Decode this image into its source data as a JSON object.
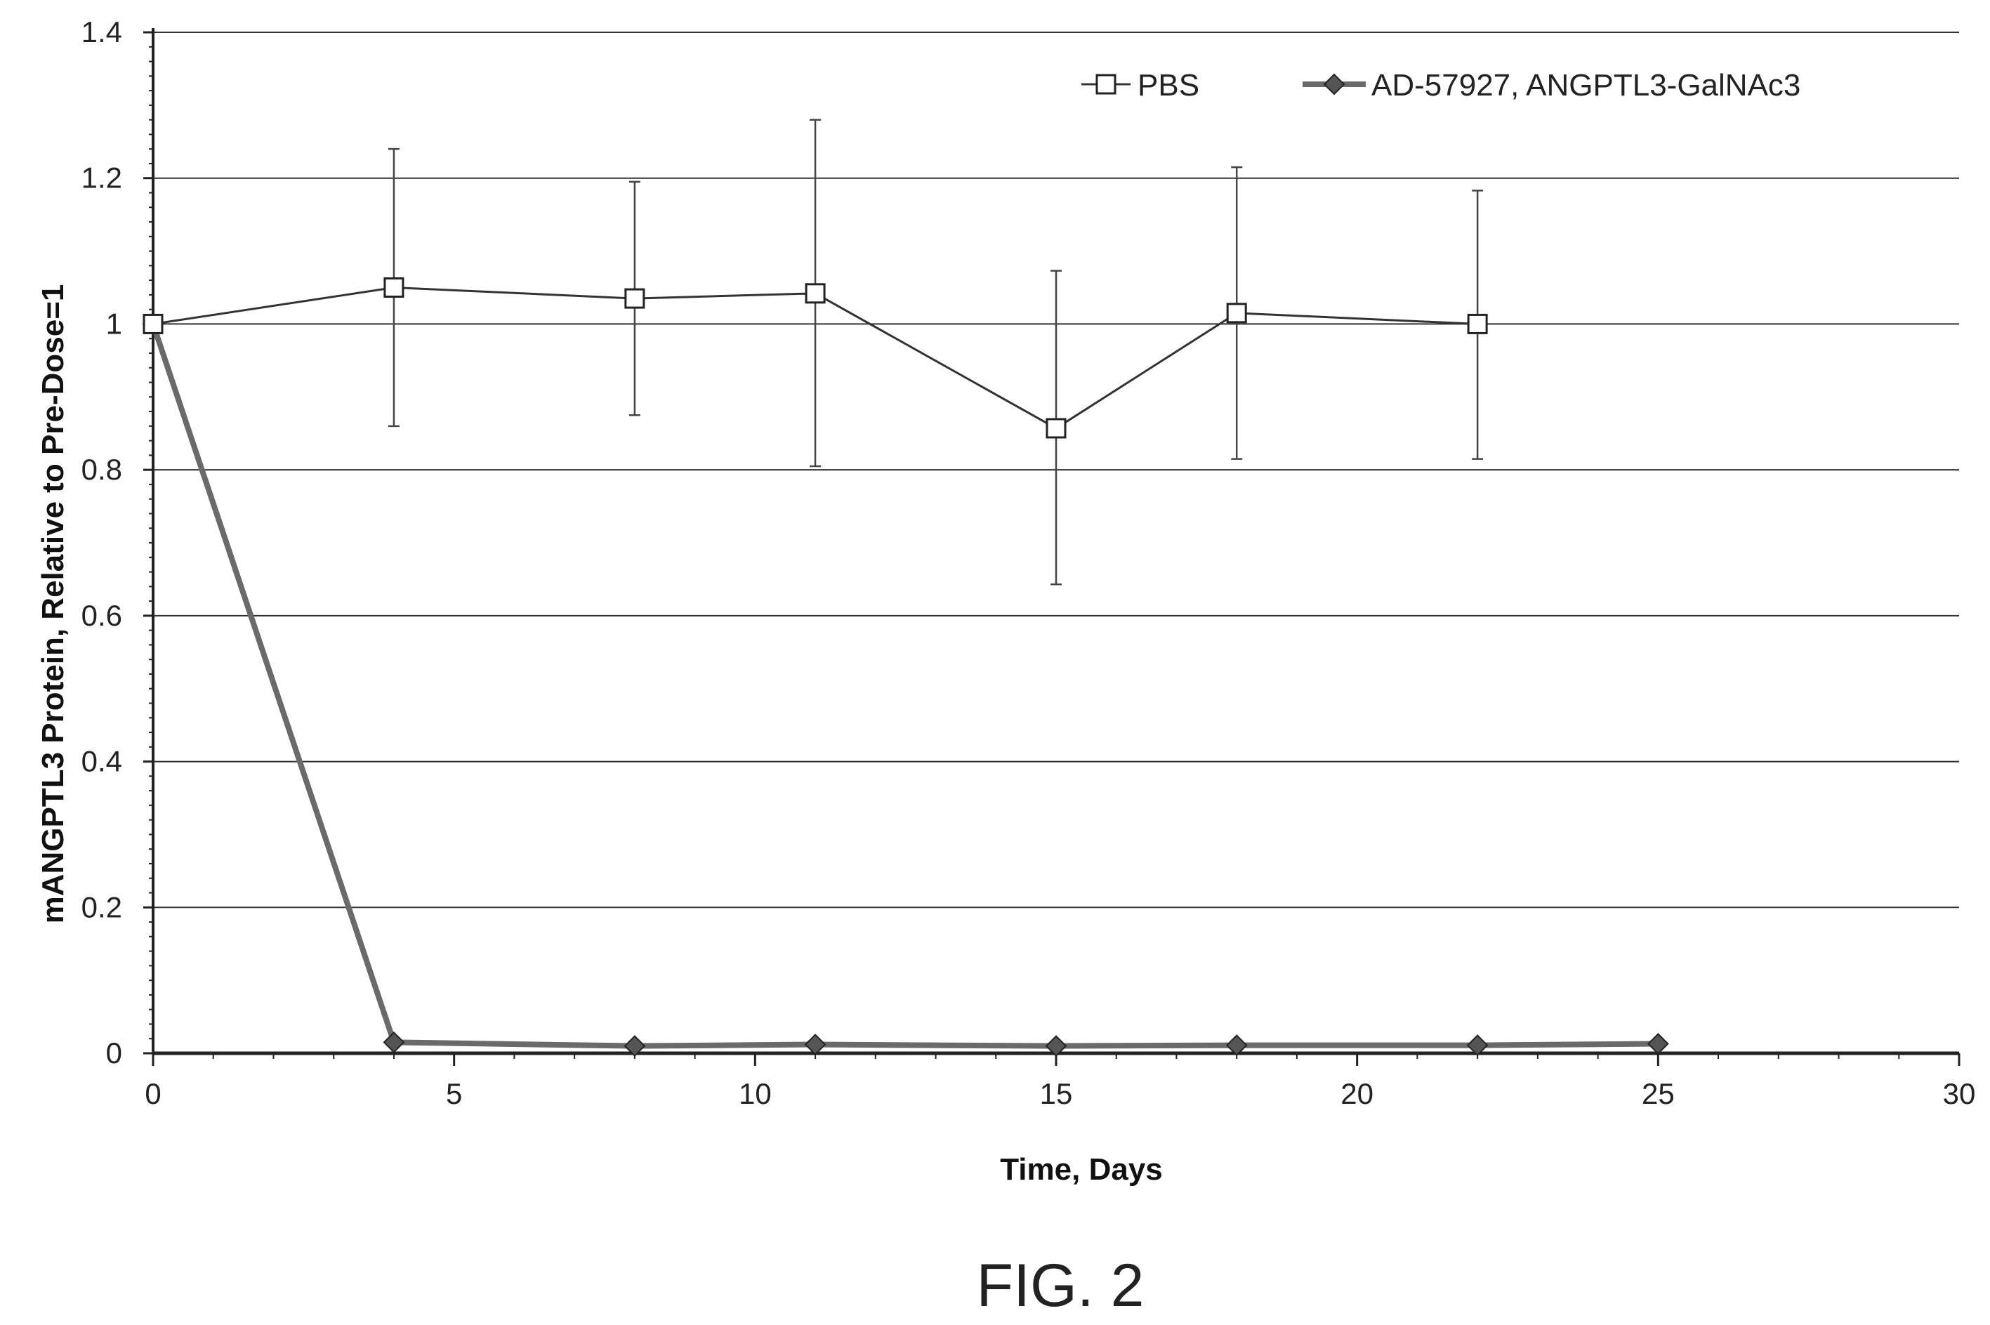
{
  "chart_data": {
    "type": "line",
    "title": "",
    "xlabel": "Time, Days",
    "ylabel": "mANGPTL3 Protein, Relative to Pre-Dose=1",
    "xlim": [
      0,
      30
    ],
    "ylim": [
      0,
      1.4
    ],
    "x_ticks": [
      "0",
      "5",
      "10",
      "15",
      "20",
      "25",
      "30"
    ],
    "y_ticks": [
      "0",
      "0.2",
      "0.4",
      "0.6",
      "0.8",
      "1",
      "1.2",
      "1.4"
    ],
    "grid": "horizontal",
    "legend_position": "top-right",
    "series": [
      {
        "name": "PBS",
        "marker": "open-square",
        "color": "#333333",
        "points": [
          {
            "x": 0,
            "y": 1.0,
            "err_low": 0.99,
            "err_high": 1.01
          },
          {
            "x": 4,
            "y": 1.05,
            "err_low": 0.86,
            "err_high": 1.24
          },
          {
            "x": 8,
            "y": 1.035,
            "err_low": 0.875,
            "err_high": 1.195
          },
          {
            "x": 11,
            "y": 1.042,
            "err_low": 0.805,
            "err_high": 1.28
          },
          {
            "x": 15,
            "y": 0.857,
            "err_low": 0.643,
            "err_high": 1.073
          },
          {
            "x": 18,
            "y": 1.015,
            "err_low": 0.815,
            "err_high": 1.215
          },
          {
            "x": 22,
            "y": 1.0,
            "err_low": 0.815,
            "err_high": 1.183
          }
        ]
      },
      {
        "name": "AD-57927, ANGPTL3-GalNAc3",
        "marker": "filled-diamond",
        "color": "#6a6a6a",
        "points": [
          {
            "x": 0,
            "y": 1.0
          },
          {
            "x": 4,
            "y": 0.015
          },
          {
            "x": 8,
            "y": 0.01
          },
          {
            "x": 11,
            "y": 0.012
          },
          {
            "x": 15,
            "y": 0.01
          },
          {
            "x": 18,
            "y": 0.011
          },
          {
            "x": 22,
            "y": 0.011
          },
          {
            "x": 25,
            "y": 0.013
          }
        ]
      }
    ]
  },
  "figure": {
    "caption": "FIG. 2"
  },
  "colors": {
    "gridline": "#333333",
    "axis": "#222222",
    "treated_line": "#6a6a6a",
    "pbs_line": "#333333"
  }
}
